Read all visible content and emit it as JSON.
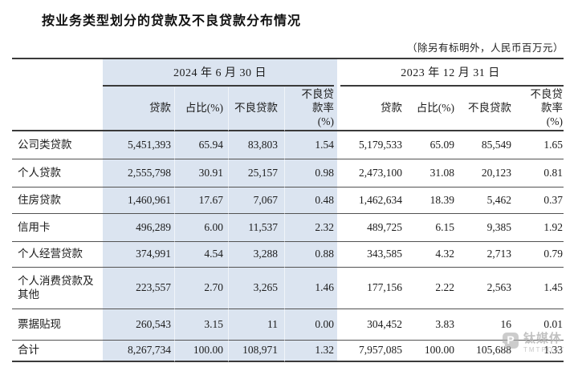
{
  "title": "按业务类型划分的贷款及不良贷款分布情况",
  "unit_note": "（除另有标明外，人民币百万元）",
  "table": {
    "period_headers": [
      "2024 年 6 月 30 日",
      "2023 年 12 月 31 日"
    ],
    "column_headers": [
      "贷款",
      "占比(%)",
      "不良贷款",
      "不良贷款率(%)"
    ],
    "rows": [
      {
        "label": "公司类贷款",
        "values": [
          "5,451,393",
          "65.94",
          "83,803",
          "1.54",
          "5,179,533",
          "65.09",
          "85,549",
          "1.65"
        ]
      },
      {
        "label": "个人贷款",
        "values": [
          "2,555,798",
          "30.91",
          "25,157",
          "0.98",
          "2,473,100",
          "31.08",
          "20,123",
          "0.81"
        ]
      },
      {
        "label": "住房贷款",
        "values": [
          "1,460,961",
          "17.67",
          "7,067",
          "0.48",
          "1,462,634",
          "18.39",
          "5,462",
          "0.37"
        ]
      },
      {
        "label": "信用卡",
        "values": [
          "496,289",
          "6.00",
          "11,537",
          "2.32",
          "489,725",
          "6.15",
          "9,385",
          "1.92"
        ]
      },
      {
        "label": "个人经营贷款",
        "values": [
          "374,991",
          "4.54",
          "3,288",
          "0.88",
          "343,585",
          "4.32",
          "2,713",
          "0.79"
        ]
      },
      {
        "label": "个人消费贷款及其他",
        "values": [
          "223,557",
          "2.70",
          "3,265",
          "1.46",
          "177,156",
          "2.22",
          "2,563",
          "1.45"
        ]
      },
      {
        "label": "票据贴现",
        "values": [
          "260,543",
          "3.15",
          "11",
          "0.00",
          "304,452",
          "3.83",
          "16",
          "0.01"
        ]
      },
      {
        "label": "合计",
        "values": [
          "8,267,734",
          "100.00",
          "108,971",
          "1.32",
          "7,957,085",
          "100.00",
          "105,688",
          "1.33"
        ]
      }
    ]
  },
  "watermark": {
    "icon": "tmtpost-logo",
    "logo_letter": "P",
    "brand": "钛媒体",
    "brand_en": "TMTPOST"
  },
  "colors": {
    "highlight_blue": "#dbe4f0",
    "rule_dark": "#3a3a3a",
    "row_separator": "#525252",
    "text": "#1c1c1c",
    "watermark_gray": "#b2b2b2"
  }
}
